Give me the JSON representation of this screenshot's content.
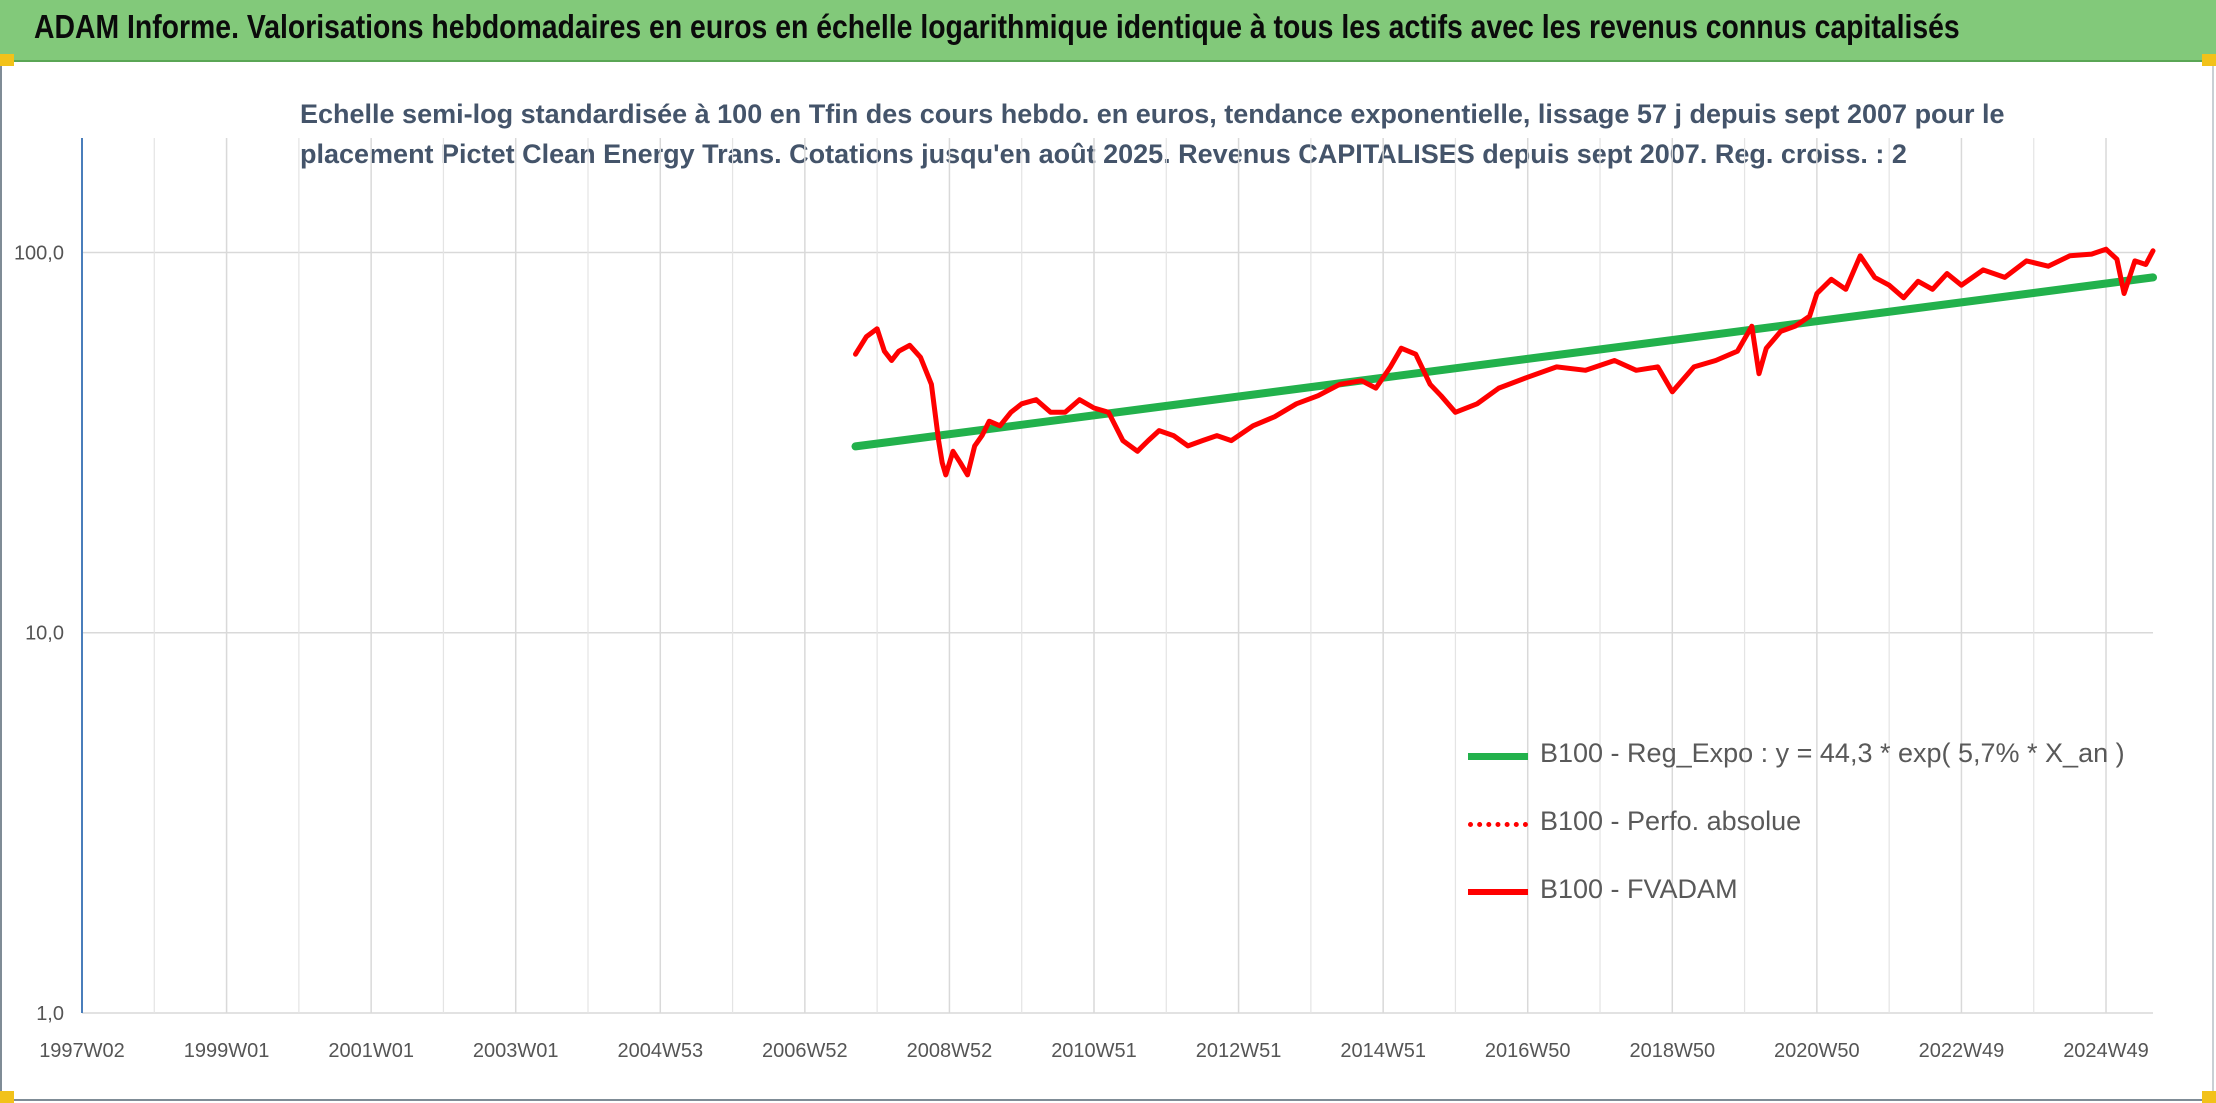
{
  "header": {
    "title": "ADAM Informe. Valorisations hebdomadaires en euros en échelle logarithmique identique à tous les actifs avec les revenus connus capitalisés"
  },
  "chart_data": {
    "type": "line",
    "title": "Echelle semi-log standardisée à 100 en Tfin des cours hebdo. en euros, tendance exponentielle, lissage 57 j depuis sept 2007 pour le placement Pictet Clean Energy Trans. Cotations jusqu'en août 2025. Revenus CAPITALISES depuis sept 2007. Reg. croiss. : 2",
    "title_lines": [
      "Echelle semi-log standardisée à 100 en Tfin des cours hebdo. en euros, tendance exponentielle, lissage 57 j depuis sept 2007 pour le",
      "placement Pictet Clean Energy Trans. Cotations jusqu'en août 2025. Revenus CAPITALISES depuis sept 2007. Reg. croiss. : 2"
    ],
    "y_scale": "log",
    "ylim": [
      1,
      200
    ],
    "y_ticks": [
      1,
      10,
      100
    ],
    "y_tick_labels": [
      "1,0",
      "10,0",
      "100,0"
    ],
    "xlim": [
      1997.0,
      2025.65
    ],
    "x_ticks": [
      1997.0,
      1999.0,
      2001.0,
      2003.0,
      2005.0,
      2007.0,
      2009.0,
      2011.0,
      2013.0,
      2015.0,
      2017.0,
      2019.0,
      2021.0,
      2023.0,
      2025.0
    ],
    "x_tick_labels": [
      "1997W02",
      "1999W01",
      "2001W01",
      "2003W01",
      "2004W53",
      "2006W52",
      "2008W52",
      "2010W51",
      "2012W51",
      "2014W51",
      "2016W50",
      "2018W50",
      "2020W50",
      "2022W49",
      "2024W49"
    ],
    "grid": true,
    "legend_position": "bottom-right",
    "series": [
      {
        "name": "B100 - Reg_Expo : y = 44,3 * exp( 5,7% *  X_an )",
        "color": "#22b14c",
        "style": "solid",
        "x": [
          2007.7,
          2025.65
        ],
        "y": [
          30.9,
          86.0
        ]
      },
      {
        "name": "B100 - Perfo. absolue",
        "color": "#ff0000",
        "style": "dotted",
        "x": [],
        "y": []
      },
      {
        "name": "B100 - FVADAM",
        "color": "#ff0000",
        "style": "solid",
        "x": [
          2007.7,
          2007.85,
          2008.0,
          2008.1,
          2008.2,
          2008.3,
          2008.45,
          2008.6,
          2008.75,
          2008.85,
          2008.9,
          2008.95,
          2009.05,
          2009.15,
          2009.25,
          2009.35,
          2009.45,
          2009.55,
          2009.7,
          2009.85,
          2010.0,
          2010.2,
          2010.4,
          2010.6,
          2010.8,
          2011.0,
          2011.2,
          2011.4,
          2011.6,
          2011.75,
          2011.9,
          2012.1,
          2012.3,
          2012.5,
          2012.7,
          2012.9,
          2013.2,
          2013.5,
          2013.8,
          2014.1,
          2014.4,
          2014.7,
          2014.9,
          2015.1,
          2015.25,
          2015.45,
          2015.65,
          2015.8,
          2016.0,
          2016.3,
          2016.6,
          2017.0,
          2017.4,
          2017.8,
          2018.2,
          2018.5,
          2018.8,
          2019.0,
          2019.3,
          2019.6,
          2019.9,
          2020.1,
          2020.2,
          2020.3,
          2020.5,
          2020.7,
          2020.9,
          2021.0,
          2021.2,
          2021.4,
          2021.6,
          2021.8,
          2022.0,
          2022.2,
          2022.4,
          2022.6,
          2022.8,
          2023.0,
          2023.3,
          2023.6,
          2023.9,
          2024.2,
          2024.5,
          2024.8,
          2025.0,
          2025.15,
          2025.25,
          2025.4,
          2025.55,
          2025.65
        ],
        "y": [
          54,
          60,
          63,
          55,
          52,
          55,
          57,
          53,
          45,
          32,
          28,
          26,
          30,
          28,
          26,
          31,
          33,
          36,
          35,
          38,
          40,
          41,
          38,
          38,
          41,
          39,
          38,
          32,
          30,
          32,
          34,
          33,
          31,
          32,
          33,
          32,
          35,
          37,
          40,
          42,
          45,
          46,
          44,
          50,
          56,
          54,
          45,
          42,
          38,
          40,
          44,
          47,
          50,
          49,
          52,
          49,
          50,
          43,
          50,
          52,
          55,
          64,
          48,
          56,
          62,
          64,
          68,
          78,
          85,
          80,
          98,
          86,
          82,
          76,
          84,
          80,
          88,
          82,
          90,
          86,
          95,
          92,
          98,
          99,
          102,
          96,
          78,
          95,
          93,
          101
        ]
      }
    ]
  }
}
